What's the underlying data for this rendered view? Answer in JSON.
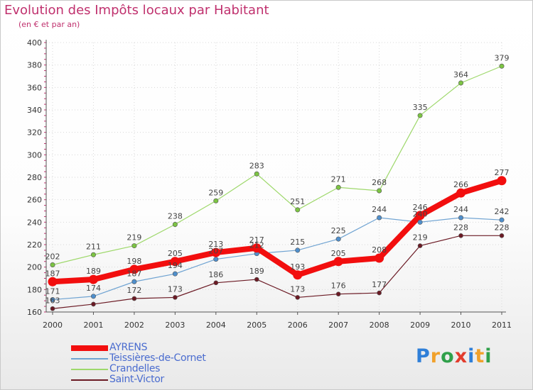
{
  "header": {
    "title": "Evolution des Impôts locaux par Habitant",
    "subtitle": "(en € et par an)"
  },
  "brand": {
    "text": "Proxiti",
    "letters": [
      "P",
      "r",
      "o",
      "x",
      "i",
      "t",
      "i"
    ],
    "colors": [
      "#2f7fd8",
      "#f1a12b",
      "#2fa04a",
      "#e23c2c",
      "#2f7fd8",
      "#f1a12b",
      "#2fa04a"
    ]
  },
  "chart_data": {
    "type": "line",
    "title": "Evolution des Impôts locaux par Habitant",
    "subtitle": "(en € et par an)",
    "categories": [
      "2000",
      "2001",
      "2002",
      "2003",
      "2004",
      "2005",
      "2006",
      "2007",
      "2008",
      "2009",
      "2010",
      "2011"
    ],
    "ylim": [
      160,
      400
    ],
    "yticks": [
      160,
      180,
      200,
      220,
      240,
      260,
      280,
      300,
      320,
      340,
      360,
      380,
      400
    ],
    "grid": true,
    "legend_position": "bottom-left",
    "series": [
      {
        "name": "Saint-Victor",
        "color": "#6b1a24",
        "point_color": "#6b1a24",
        "width": 1.2,
        "marker": 3,
        "values": [
          163,
          167,
          172,
          173,
          186,
          189,
          173,
          176,
          177,
          219,
          228,
          228
        ],
        "labels": [
          "163",
          "",
          "172",
          "173",
          "186",
          "189",
          "173",
          "176",
          "177",
          "219",
          "228",
          "228"
        ]
      },
      {
        "name": "Crandelles",
        "color": "#9ed86b",
        "point_color": "#7cc443",
        "width": 1.2,
        "marker": 3.2,
        "values": [
          202,
          211,
          219,
          238,
          259,
          283,
          251,
          271,
          268,
          335,
          364,
          379
        ],
        "labels": [
          "202",
          "211",
          "219",
          "238",
          "259",
          "283",
          "251",
          "271",
          "268",
          "335",
          "364",
          "379"
        ]
      },
      {
        "name": "Teissières-de-Cornet",
        "color": "#6fa3d2",
        "point_color": "#4f8fcc",
        "width": 1.2,
        "marker": 3.2,
        "values": [
          171,
          174,
          187,
          194,
          207,
          212,
          215,
          225,
          244,
          240,
          244,
          242
        ],
        "labels": [
          "171",
          "174",
          "187",
          "194",
          "207",
          "212",
          "215",
          "225",
          "244",
          "240",
          "244",
          "242"
        ]
      },
      {
        "name": "AYRENS",
        "color": "#f20e0e",
        "point_color": "#f20e0e",
        "width": 8,
        "marker": 6.5,
        "values": [
          187,
          189,
          198,
          205,
          213,
          217,
          193,
          205,
          208,
          246,
          266,
          277
        ],
        "labels": [
          "187",
          "189",
          "198",
          "205",
          "213",
          "217",
          "193",
          "205",
          "208",
          "246",
          "266",
          "277"
        ]
      }
    ]
  }
}
